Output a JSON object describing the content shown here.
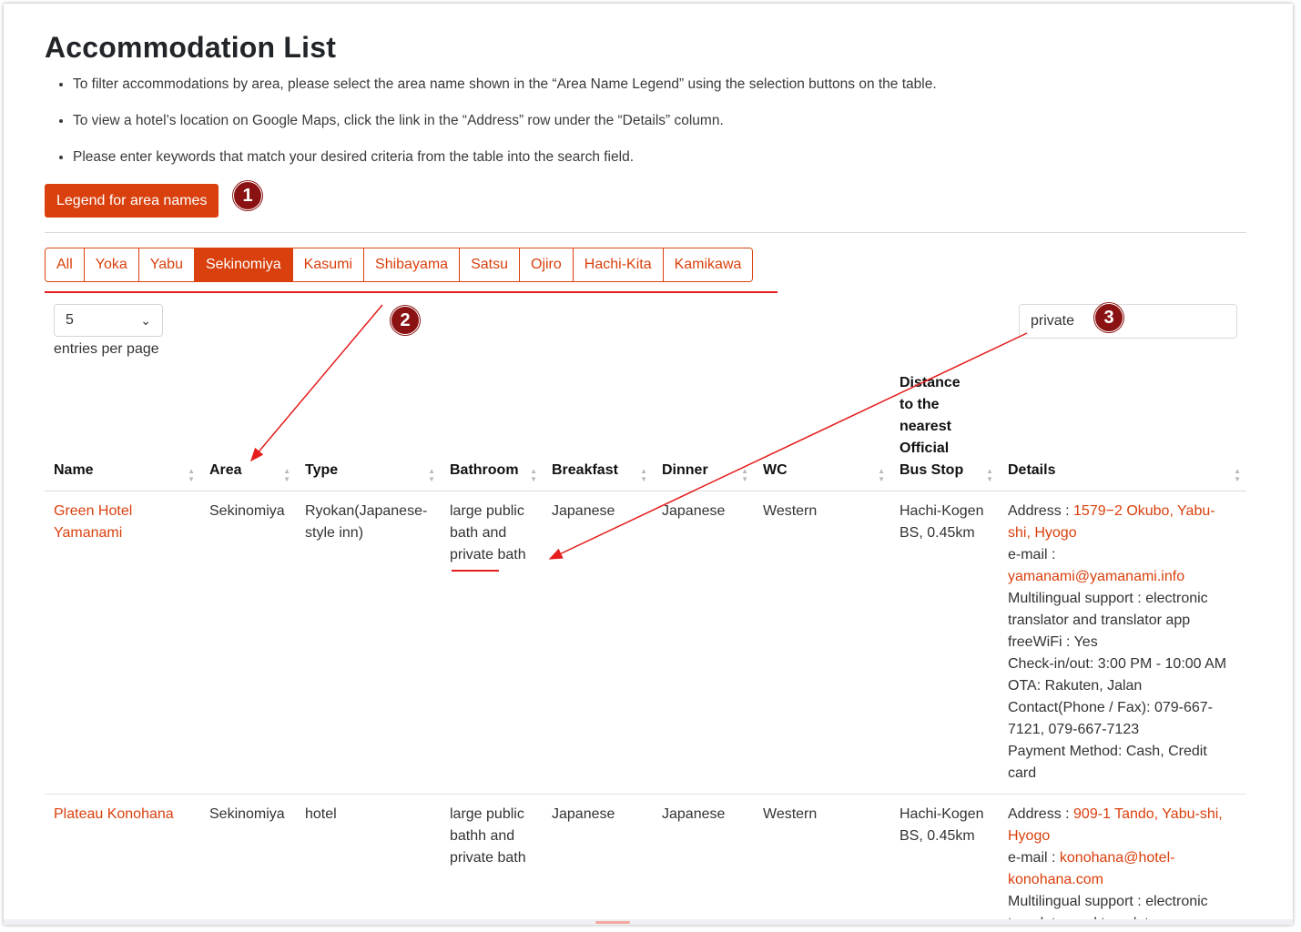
{
  "page": {
    "title": "Accommodation List"
  },
  "instructions": [
    "To filter accommodations by area, please select the area name shown in the “Area Name Legend” using the selection buttons on the table.",
    "To view a hotel’s location on Google Maps, click the link in the “Address” row under the “Details” column.",
    "Please enter keywords that match your desired criteria from the table into the search field."
  ],
  "legend_button": {
    "label": "Legend for area names"
  },
  "markers": [
    "1",
    "2",
    "3"
  ],
  "area_filters": {
    "buttons": [
      "All",
      "Yoka",
      "Yabu",
      "Sekinomiya",
      "Kasumi",
      "Shibayama",
      "Satsu",
      "Ojiro",
      "Hachi-Kita",
      "Kamikawa"
    ],
    "active": "Sekinomiya"
  },
  "entries": {
    "value": "5",
    "label": "entries per page"
  },
  "search": {
    "value": "private"
  },
  "table": {
    "headers": {
      "name": "Name",
      "area": "Area",
      "type": "Type",
      "bathroom": "Bathroom",
      "breakfast": "Breakfast",
      "dinner": "Dinner",
      "wc": "WC",
      "distance": [
        "Distance",
        "to the",
        "nearest",
        "Official",
        "Bus Stop"
      ],
      "details": "Details"
    },
    "rows": [
      {
        "name": "Green Hotel Yamanami",
        "area": "Sekinomiya",
        "type": "Ryokan(Japanese-style inn)",
        "bathroom": "large public bath and private bath",
        "breakfast": "Japanese",
        "dinner": "Japanese",
        "wc": "Western",
        "distance": "Hachi-Kogen BS, 0.45km",
        "details": {
          "address_label": "Address : ",
          "address": "1579−2 Okubo, Yabu-shi, Hyogo",
          "email_label": "e-mail : ",
          "email": "yamanami@yamanami.info",
          "lines": [
            "Multilingual support : electronic translator and translator app",
            "freeWiFi : Yes",
            "Check-in/out: 3:00 PM - 10:00 AM",
            "OTA: Rakuten, Jalan",
            "Contact(Phone / Fax): 079-667-7121, 079-667-7123",
            "Payment Method: Cash, Credit card"
          ]
        }
      },
      {
        "name": "Plateau Konohana",
        "area": "Sekinomiya",
        "type": "hotel",
        "bathroom": "large public bathh and private bath",
        "breakfast": "Japanese",
        "dinner": "Japanese",
        "wc": "Western",
        "distance": "Hachi-Kogen BS, 0.45km",
        "details": {
          "address_label": "Address : ",
          "address": "909-1 Tando, Yabu-shi, Hyogo",
          "email_label": "e-mail : ",
          "email": "konohana@hotel-konohana.com",
          "lines": [
            "Multilingual support : electronic translator and translator app"
          ]
        }
      }
    ]
  },
  "colors": {
    "accent": "#d9400d",
    "marker": "#8b1212",
    "annotation": "#e51c1c"
  }
}
